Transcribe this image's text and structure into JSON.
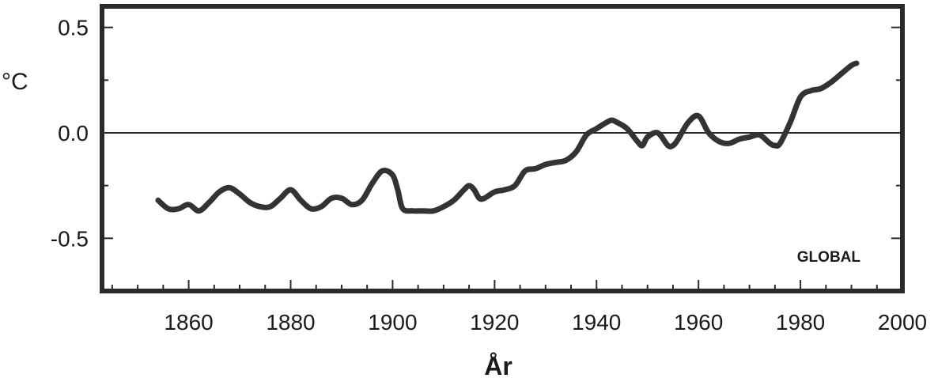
{
  "chart_data": {
    "type": "line",
    "ylabel": "°C",
    "xlabel": "År",
    "annotation": "GLOBAL",
    "xlim": [
      1843,
      2000
    ],
    "ylim": [
      -0.75,
      0.6
    ],
    "x_ticks": [
      1860,
      1880,
      1900,
      1920,
      1940,
      1960,
      1980,
      2000
    ],
    "x_tick_labels": [
      "1860",
      "1880",
      "1900",
      "1920",
      "1940",
      "1960",
      "1980",
      "2000"
    ],
    "y_ticks": [
      0.5,
      0.0,
      -0.5
    ],
    "y_tick_labels": [
      "0.5",
      "0.0",
      "-0.5"
    ],
    "reference_line": 0.0,
    "grid": false,
    "series": [
      {
        "x": [
          1854,
          1856,
          1858,
          1860,
          1862,
          1864,
          1866,
          1868,
          1870,
          1872,
          1874,
          1876,
          1878,
          1880,
          1882,
          1884,
          1886,
          1888,
          1890,
          1892,
          1894,
          1896,
          1898,
          1900,
          1901,
          1902,
          1904,
          1906,
          1908,
          1910,
          1912,
          1914,
          1915,
          1916,
          1917,
          1918,
          1920,
          1922,
          1924,
          1926,
          1928,
          1930,
          1932,
          1934,
          1936,
          1938,
          1940,
          1942,
          1943,
          1944,
          1946,
          1948,
          1949,
          1950,
          1952,
          1954,
          1955,
          1956,
          1958,
          1960,
          1962,
          1964,
          1966,
          1968,
          1970,
          1972,
          1974,
          1975,
          1976,
          1978,
          1980,
          1982,
          1984,
          1986,
          1988,
          1990,
          1991
        ],
        "y": [
          -0.32,
          -0.36,
          -0.36,
          -0.34,
          -0.37,
          -0.33,
          -0.28,
          -0.26,
          -0.29,
          -0.33,
          -0.35,
          -0.35,
          -0.31,
          -0.27,
          -0.32,
          -0.36,
          -0.35,
          -0.31,
          -0.31,
          -0.34,
          -0.32,
          -0.24,
          -0.18,
          -0.2,
          -0.27,
          -0.36,
          -0.37,
          -0.37,
          -0.37,
          -0.35,
          -0.32,
          -0.27,
          -0.25,
          -0.27,
          -0.31,
          -0.31,
          -0.28,
          -0.27,
          -0.25,
          -0.18,
          -0.17,
          -0.15,
          -0.14,
          -0.13,
          -0.09,
          -0.01,
          0.02,
          0.05,
          0.06,
          0.05,
          0.02,
          -0.04,
          -0.06,
          -0.02,
          0.0,
          -0.06,
          -0.06,
          -0.03,
          0.05,
          0.08,
          0.0,
          -0.04,
          -0.05,
          -0.03,
          -0.02,
          -0.01,
          -0.05,
          -0.06,
          -0.05,
          0.05,
          0.17,
          0.2,
          0.21,
          0.24,
          0.28,
          0.32,
          0.33
        ]
      }
    ]
  }
}
